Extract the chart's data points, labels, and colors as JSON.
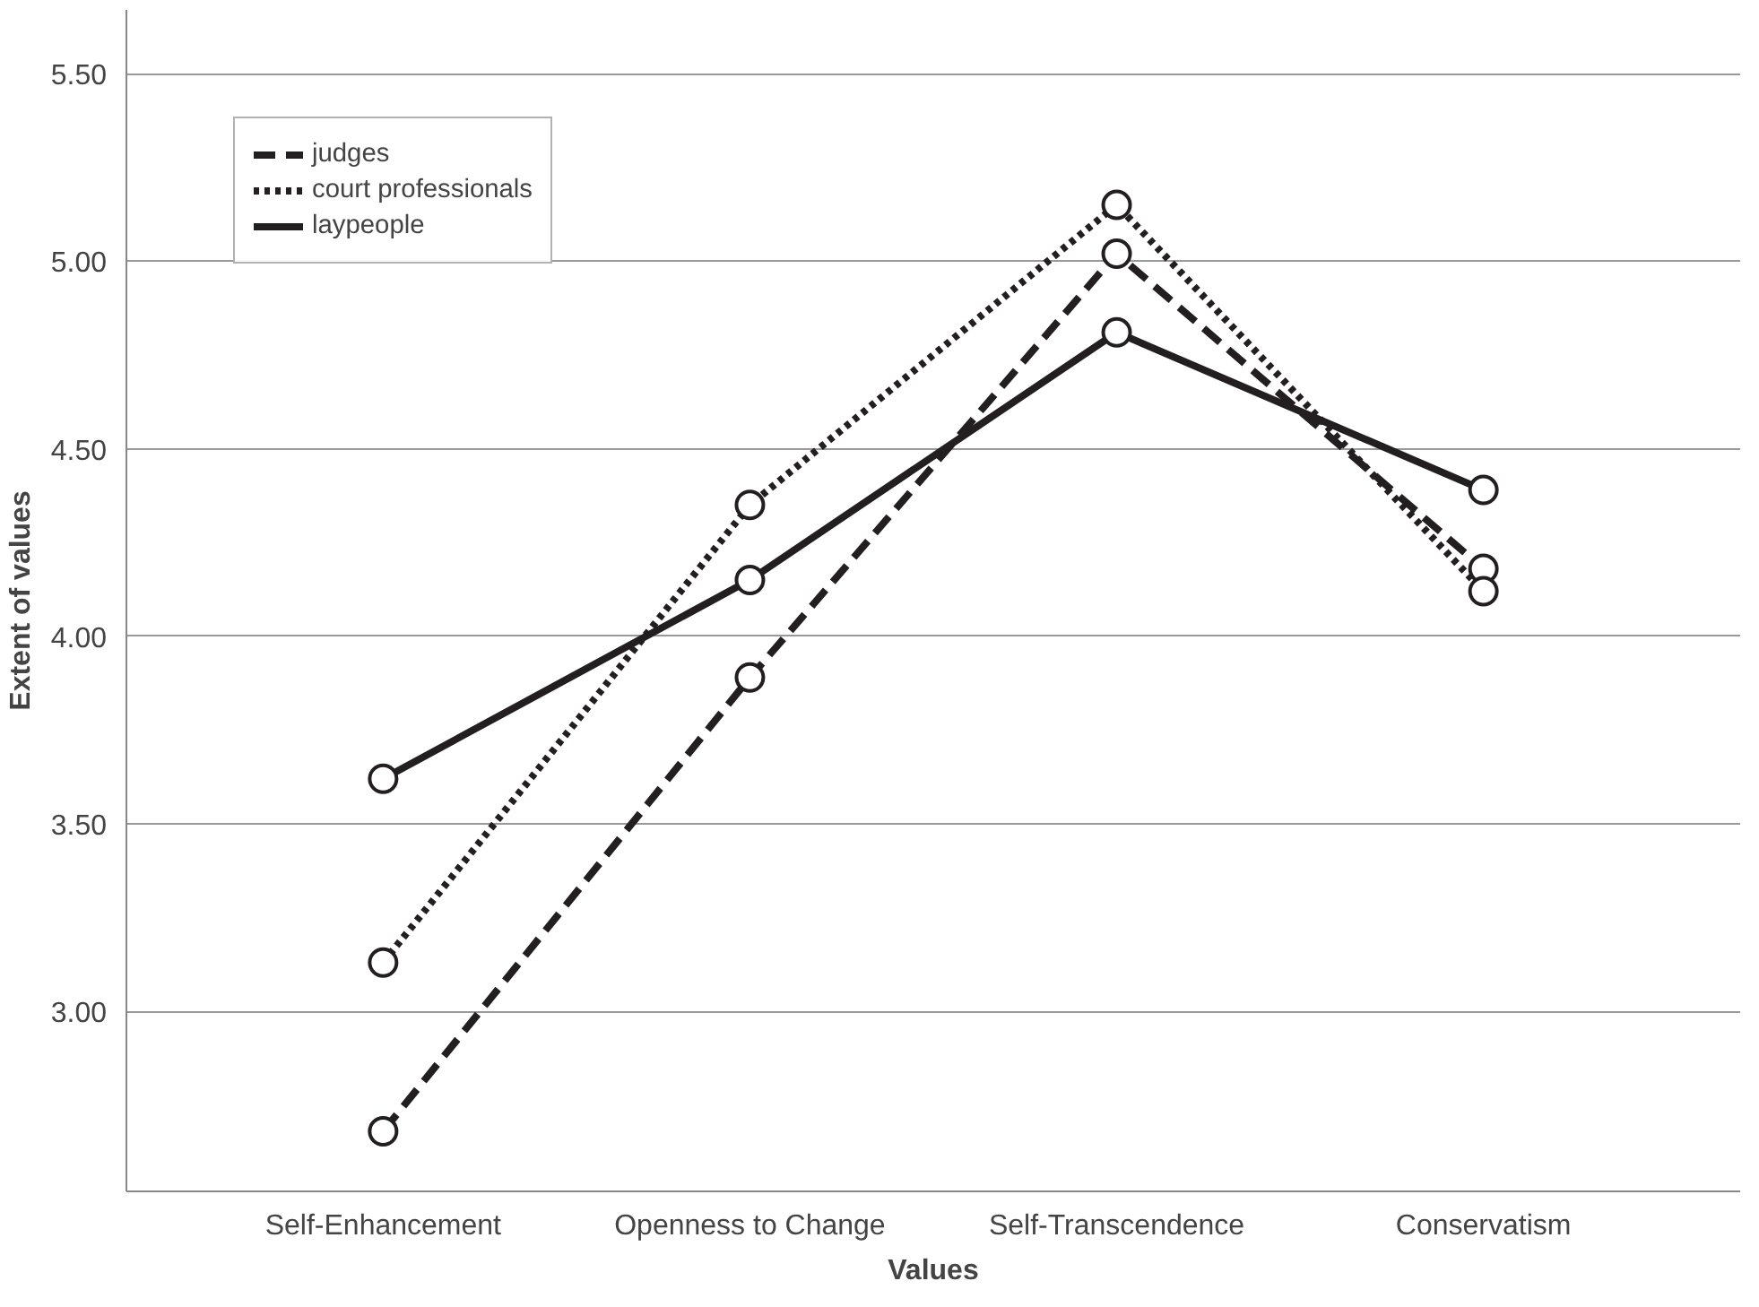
{
  "chart_data": {
    "type": "line",
    "xlabel": "Values",
    "ylabel": "Extent of values",
    "categories": [
      "Self-Enhancement",
      "Openness to Change",
      "Self-Transcendence",
      "Conservatism"
    ],
    "series": [
      {
        "name": "judges",
        "color": "#231f20",
        "line_style": "dashed",
        "values": [
          2.68,
          3.89,
          5.02,
          4.18
        ]
      },
      {
        "name": "court professionals",
        "color": "#231f20",
        "line_style": "dotted",
        "values": [
          3.13,
          4.35,
          5.15,
          4.12
        ]
      },
      {
        "name": "laypeople",
        "color": "#231f20",
        "line_style": "solid",
        "values": [
          3.62,
          4.15,
          4.81,
          4.39
        ]
      }
    ],
    "ylim": [
      2.52,
      5.67
    ],
    "yticks": [
      {
        "value": 3,
        "label": "3.00"
      },
      {
        "value": 3.5,
        "label": "3.50"
      },
      {
        "value": 4,
        "label": "4.00"
      },
      {
        "value": 4.5,
        "label": "4.50"
      },
      {
        "value": 5,
        "label": "5.00"
      },
      {
        "value": 5.5,
        "label": "5.50"
      }
    ],
    "grid": "y",
    "legend": "top left",
    "marker": "circle"
  }
}
